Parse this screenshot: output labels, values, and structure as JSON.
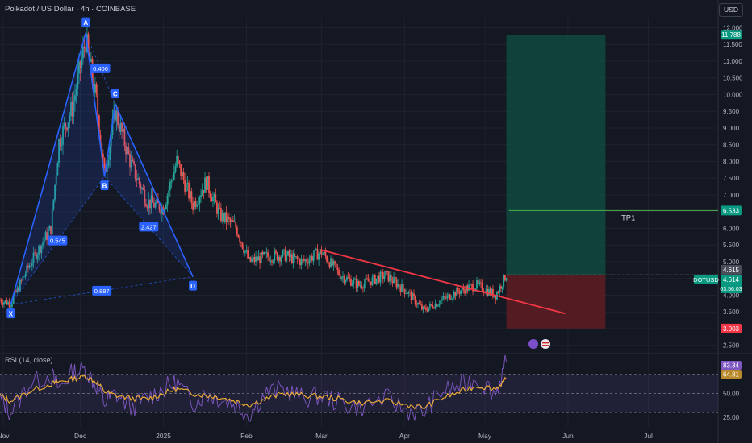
{
  "header": {
    "title": "Polkadot / US Dollar · 4h · COINBASE",
    "currency": "USD"
  },
  "rsi_title": "RSI (14, close)",
  "colors": {
    "background": "#141823",
    "up_candle": "#26a69a",
    "down_candle": "#ef5350",
    "pattern": "#2962ff",
    "trendline": "#f23645",
    "target_zone": "#0f4a40",
    "stop_zone": "#5a1d22",
    "rsi_line": "#7e57c2",
    "rsi_ma": "#f2b134"
  },
  "chart_data": [
    {
      "type": "candlestick",
      "title": "Polkadot / US Dollar · 4h · COINBASE",
      "xlabel": "",
      "ylabel": "",
      "x_ticks": [
        "Nov",
        "Dec",
        "2025",
        "Feb",
        "Mar",
        "Apr",
        "May",
        "Jun",
        "Jul"
      ],
      "y_ticks": [
        "12.000",
        "11.500",
        "11.000",
        "10.500",
        "10.000",
        "9.500",
        "9.000",
        "8.500",
        "8.000",
        "7.500",
        "7.000",
        "6.500",
        "6.000",
        "5.500",
        "5.000",
        "4.500",
        "4.000",
        "3.500",
        "3.000",
        "2.500"
      ],
      "ylim": [
        2.3,
        12.3
      ],
      "grid": true,
      "series_keypoints": {
        "x": [
          "2024-11-01",
          "2024-11-05",
          "2024-11-12",
          "2024-11-20",
          "2024-11-23",
          "2024-11-28",
          "2024-12-03",
          "2024-12-07",
          "2024-12-10",
          "2024-12-14",
          "2024-12-20",
          "2024-12-26",
          "2025-01-01",
          "2025-01-06",
          "2025-01-12",
          "2025-01-17",
          "2025-01-22",
          "2025-01-28",
          "2025-02-02",
          "2025-02-08",
          "2025-02-15",
          "2025-02-22",
          "2025-03-01",
          "2025-03-08",
          "2025-03-15",
          "2025-03-25",
          "2025-04-02",
          "2025-04-08",
          "2025-04-15",
          "2025-04-22",
          "2025-04-28",
          "2025-05-05",
          "2025-05-09"
        ],
        "close": [
          3.85,
          3.75,
          4.9,
          6.0,
          8.6,
          9.6,
          11.65,
          9.8,
          7.6,
          9.5,
          7.9,
          6.8,
          6.6,
          8.0,
          6.7,
          7.4,
          6.4,
          6.05,
          5.0,
          5.15,
          5.2,
          5.0,
          5.3,
          4.6,
          4.3,
          4.6,
          4.1,
          3.55,
          3.85,
          4.15,
          4.3,
          4.0,
          4.614
        ]
      },
      "harmonic_pattern": {
        "points": [
          {
            "label": "X",
            "x": "2024-11-05",
            "y": 3.72
          },
          {
            "label": "A",
            "x": "2024-12-03",
            "y": 11.85
          },
          {
            "label": "B",
            "x": "2024-12-10",
            "y": 7.55
          },
          {
            "label": "C",
            "x": "2024-12-14",
            "y": 9.72
          },
          {
            "label": "D",
            "x": "2025-01-12",
            "y": 4.55
          }
        ],
        "ratios": [
          {
            "text": "0.545",
            "between": "X-B"
          },
          {
            "text": "0.406",
            "between": "A-C"
          },
          {
            "text": "2.427",
            "between": "B-D"
          },
          {
            "text": "0.887",
            "between": "X-D"
          }
        ]
      },
      "trendline": {
        "start": {
          "x": "2025-03-01",
          "y": 5.35
        },
        "end": {
          "x": "2025-05-31",
          "y": 3.45
        }
      },
      "position": {
        "entry": 4.615,
        "target": 11.788,
        "stop": 3.003,
        "tp1": 6.533,
        "tp1_label": "TP1",
        "start": "2025-05-09",
        "end": "2025-06-15"
      },
      "price_labels": [
        {
          "text": "11.788",
          "value": 11.788,
          "color": "#089981"
        },
        {
          "text": "6.533",
          "value": 6.533,
          "color": "#089981"
        },
        {
          "text": "4.615",
          "value": 4.615,
          "color": "#4a4e5a"
        },
        {
          "text": "4.614",
          "value": 4.614,
          "color": "#089981"
        },
        {
          "text": "3.003",
          "value": 3.003,
          "color": "#f23645"
        }
      ],
      "symbol_label": "DOTUSD",
      "countdown": "03:56:03"
    },
    {
      "type": "line",
      "title": "RSI (14, close)",
      "y_ticks": [
        "75.00",
        "50.00",
        "25.00"
      ],
      "ylim": [
        15,
        90
      ],
      "bands": [
        70,
        30
      ],
      "series": [
        {
          "values": [
            45,
            30,
            60,
            70,
            55,
            72,
            75,
            58,
            40,
            50,
            35,
            45,
            55,
            62,
            40,
            50,
            45,
            38,
            28,
            50,
            55,
            45,
            48,
            40,
            35,
            45,
            32,
            30,
            52,
            58,
            66,
            50,
            83.34
          ]
        },
        {
          "values": [
            48,
            42,
            52,
            60,
            62,
            65,
            68,
            62,
            52,
            48,
            45,
            44,
            50,
            55,
            50,
            48,
            46,
            42,
            38,
            44,
            50,
            48,
            47,
            44,
            40,
            42,
            38,
            35,
            45,
            52,
            58,
            55,
            64.81
          ]
        }
      ],
      "last_labels": [
        {
          "text": "83.34",
          "value": 83.34,
          "color": "#7e57c2"
        },
        {
          "text": "64.81",
          "value": 64.81,
          "color": "#b8892a"
        }
      ]
    }
  ]
}
